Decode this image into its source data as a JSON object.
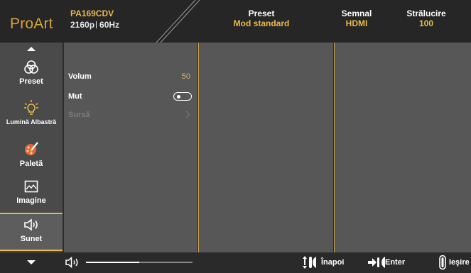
{
  "header": {
    "brand": "ProArt",
    "model": "PA169CDV",
    "resolution": "2160p",
    "refresh": "60Hz",
    "preset_label": "Preset",
    "preset_value": "Mod standard",
    "signal_label": "Semnal",
    "signal_value": "HDMI",
    "brightness_label": "Strălucire",
    "brightness_value": "100"
  },
  "sidebar": {
    "items": [
      {
        "label": "Preset",
        "icon": "color-circles-icon"
      },
      {
        "label": "Lumină Albastră",
        "icon": "light-bulb-icon"
      },
      {
        "label": "Paletă",
        "icon": "palette-icon"
      },
      {
        "label": "Imagine",
        "icon": "image-icon"
      },
      {
        "label": "Sunet",
        "icon": "speaker-icon",
        "active": true
      }
    ]
  },
  "menu": {
    "items": [
      {
        "label": "Volum",
        "value": "50"
      },
      {
        "label": "Mut",
        "control": "toggle-off"
      },
      {
        "label": "Sursă",
        "control": "chevron",
        "disabled": true
      }
    ]
  },
  "footer": {
    "volume_level": 0.5,
    "back_label": "Înapoi",
    "enter_label": "Enter",
    "exit_label": "Ieşire"
  },
  "colors": {
    "accent": "#e8b94a",
    "panel": "#575757",
    "sidebar": "#4a4a4a"
  }
}
